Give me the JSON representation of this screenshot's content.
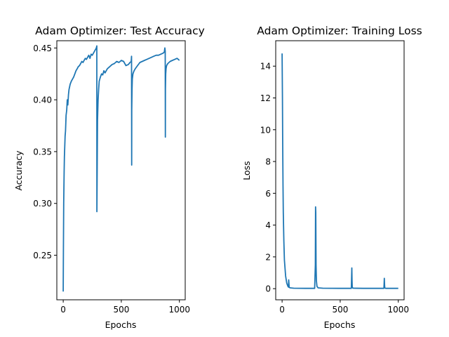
{
  "chart_data": [
    {
      "type": "line",
      "title": "Adam Optimizer: Test Accuracy",
      "xlabel": "Epochs",
      "ylabel": "Accuracy",
      "xlim": [
        -55,
        1050
      ],
      "ylim": [
        0.207,
        0.457
      ],
      "xticks": [
        0,
        500,
        1000
      ],
      "yticks": [
        0.25,
        0.3,
        0.35,
        0.4,
        0.45
      ],
      "ytick_labels": [
        "0.25",
        "0.30",
        "0.35",
        "0.40",
        "0.45"
      ],
      "grid": false,
      "color": "#1f77b4",
      "series": [
        {
          "x": [
            0,
            2,
            4,
            6,
            8,
            10,
            13,
            16,
            20,
            25,
            30,
            35,
            40,
            45,
            50,
            60,
            70,
            80,
            90,
            100,
            110,
            120,
            130,
            140,
            150,
            160,
            170,
            180,
            190,
            200,
            210,
            220,
            230,
            240,
            250,
            260,
            270,
            280,
            285,
            289,
            290,
            292,
            295,
            300,
            305,
            310,
            320,
            330,
            340,
            350,
            360,
            380,
            400,
            420,
            440,
            460,
            480,
            500,
            520,
            540,
            560,
            575,
            585,
            588,
            589,
            590,
            592,
            595,
            600,
            610,
            620,
            640,
            660,
            680,
            700,
            720,
            740,
            760,
            780,
            800,
            820,
            840,
            860,
            870,
            875,
            878,
            879,
            880,
            882,
            885,
            890,
            900,
            920,
            940,
            960,
            980,
            1000
          ],
          "y": [
            0.215,
            0.256,
            0.3,
            0.315,
            0.33,
            0.345,
            0.355,
            0.365,
            0.37,
            0.385,
            0.39,
            0.4,
            0.395,
            0.405,
            0.41,
            0.415,
            0.418,
            0.42,
            0.422,
            0.425,
            0.428,
            0.43,
            0.432,
            0.433,
            0.435,
            0.437,
            0.436,
            0.438,
            0.44,
            0.439,
            0.441,
            0.443,
            0.44,
            0.444,
            0.443,
            0.445,
            0.447,
            0.449,
            0.45,
            0.452,
            0.292,
            0.33,
            0.38,
            0.4,
            0.41,
            0.418,
            0.422,
            0.425,
            0.424,
            0.428,
            0.426,
            0.43,
            0.432,
            0.434,
            0.435,
            0.437,
            0.436,
            0.438,
            0.437,
            0.433,
            0.434,
            0.436,
            0.437,
            0.442,
            0.337,
            0.39,
            0.41,
            0.42,
            0.425,
            0.428,
            0.43,
            0.433,
            0.436,
            0.437,
            0.438,
            0.439,
            0.44,
            0.441,
            0.442,
            0.443,
            0.443,
            0.444,
            0.445,
            0.446,
            0.45,
            0.447,
            0.364,
            0.41,
            0.425,
            0.43,
            0.433,
            0.435,
            0.437,
            0.438,
            0.439,
            0.44,
            0.438
          ]
        }
      ]
    },
    {
      "type": "line",
      "title": "Adam Optimizer: Training Loss",
      "xlabel": "Epochs",
      "ylabel": "Loss",
      "xlim": [
        -55,
        1050
      ],
      "ylim": [
        -0.7,
        15.6
      ],
      "xticks": [
        0,
        500,
        1000
      ],
      "yticks": [
        0,
        2,
        4,
        6,
        8,
        10,
        12,
        14
      ],
      "ytick_labels": [
        "0",
        "2",
        "4",
        "6",
        "8",
        "10",
        "12",
        "14"
      ],
      "grid": false,
      "color": "#1f77b4",
      "series": [
        {
          "x": [
            0,
            3,
            5,
            8,
            10,
            15,
            20,
            30,
            40,
            50,
            55,
            57,
            59,
            61,
            70,
            100,
            200,
            280,
            286,
            288,
            290,
            292,
            295,
            300,
            310,
            350,
            500,
            596,
            598,
            600,
            602,
            604,
            610,
            700,
            876,
            878,
            880,
            882,
            884,
            890,
            1000
          ],
          "y": [
            14.8,
            12.0,
            9.5,
            6.5,
            4.8,
            3.0,
            1.8,
            0.8,
            0.35,
            0.15,
            0.1,
            0.55,
            0.3,
            0.08,
            0.05,
            0.03,
            0.02,
            0.02,
            1.5,
            5.15,
            4.8,
            1.5,
            0.5,
            0.15,
            0.05,
            0.03,
            0.02,
            0.02,
            0.6,
            1.3,
            0.5,
            0.1,
            0.03,
            0.02,
            0.02,
            0.3,
            0.65,
            0.2,
            0.05,
            0.02,
            0.02
          ]
        }
      ]
    }
  ]
}
